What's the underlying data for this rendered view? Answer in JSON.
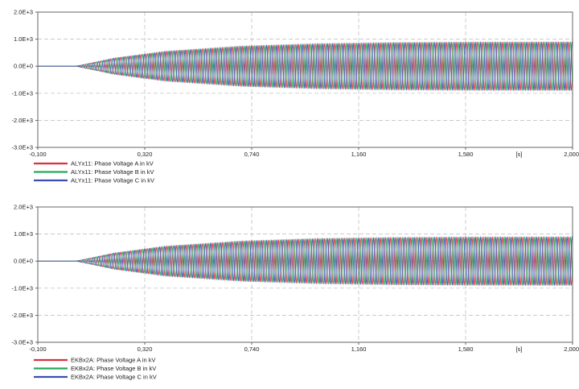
{
  "chart_data": [
    {
      "type": "line",
      "x_unit": "[s]",
      "xlim": [
        -0.1,
        2.0
      ],
      "ylim": [
        -3000,
        2000
      ],
      "x_ticks": [
        "-0,100",
        "0,320",
        "0,740",
        "1,160",
        "1,580",
        "2,000"
      ],
      "y_ticks": [
        "2.0E+3",
        "1.0E+3",
        "0.0E+0",
        "-1.0E+3",
        "-2.0E+3",
        "-3.0E+3"
      ],
      "grid": true,
      "legend_position": "bottom-left",
      "envelope": {
        "x": [
          -0.1,
          0.05,
          0.2,
          0.4,
          0.7,
          1.0,
          1.3,
          1.6,
          2.0
        ],
        "amplitude": [
          0,
          0,
          300,
          550,
          740,
          830,
          870,
          885,
          890
        ]
      },
      "series": [
        {
          "name": "ALYx11: Phase Voltage A in kV",
          "color": "#d93340"
        },
        {
          "name": "ALYx11: Phase Voltage B in kV",
          "color": "#27a85c"
        },
        {
          "name": "ALYx11: Phase Voltage C in kV",
          "color": "#3a4fb0"
        }
      ]
    },
    {
      "type": "line",
      "x_unit": "[s]",
      "xlim": [
        -0.1,
        2.0
      ],
      "ylim": [
        -3000,
        2000
      ],
      "x_ticks": [
        "-0,100",
        "0,320",
        "0,740",
        "1,160",
        "1,580",
        "2,000"
      ],
      "y_ticks": [
        "2.0E+3",
        "1.0E+3",
        "0.0E+0",
        "-1.0E+3",
        "-2.0E+3",
        "-3.0E+3"
      ],
      "grid": true,
      "legend_position": "bottom-left",
      "envelope": {
        "x": [
          -0.1,
          0.05,
          0.2,
          0.4,
          0.7,
          1.0,
          1.3,
          1.6,
          2.0
        ],
        "amplitude": [
          0,
          0,
          300,
          550,
          740,
          830,
          870,
          885,
          890
        ]
      },
      "series": [
        {
          "name": "EKBx2A: Phase Voltage A in kV",
          "color": "#d93340"
        },
        {
          "name": "EKBx2A: Phase Voltage B in kV",
          "color": "#27a85c"
        },
        {
          "name": "EKBx2A: Phase Voltage C in kV",
          "color": "#3a4fb0"
        }
      ]
    }
  ]
}
